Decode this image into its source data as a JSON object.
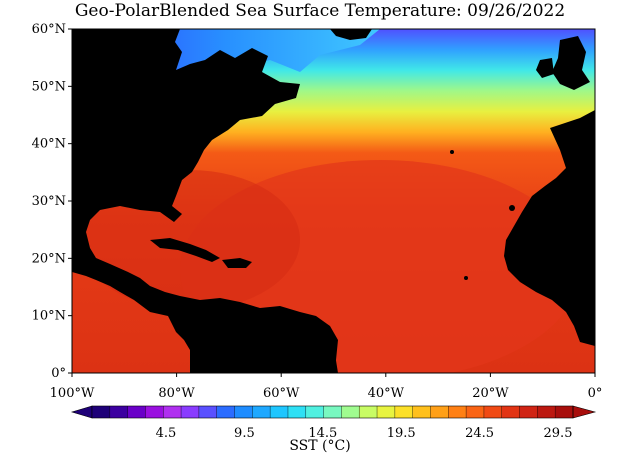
{
  "title": "Geo-PolarBlended Sea Surface Temperature: 09/26/2022",
  "map": {
    "lat_ticks": [
      "60°N",
      "50°N",
      "40°N",
      "30°N",
      "20°N",
      "10°N",
      "0°"
    ],
    "lon_ticks": [
      "100°W",
      "80°W",
      "60°W",
      "40°W",
      "20°W",
      "0°"
    ],
    "land_color": "#000000",
    "ocean_dominant_color": "#e8401c"
  },
  "colorbar": {
    "label": "SST (°C)",
    "ticks": [
      "4.5",
      "9.5",
      "14.5",
      "19.5",
      "24.5",
      "29.5"
    ],
    "colors": [
      "#1e0078",
      "#3c00a0",
      "#6a00c8",
      "#9a10e0",
      "#b030f0",
      "#8a3cff",
      "#5a50ff",
      "#2b6cff",
      "#1e8cff",
      "#1ea8ff",
      "#1ec6ff",
      "#2ee0f5",
      "#50f0e0",
      "#78f8c0",
      "#a0fc90",
      "#c8fc64",
      "#e8f440",
      "#fce028",
      "#ffc01c",
      "#ffa018",
      "#ff8014",
      "#fa6414",
      "#f04a14",
      "#e23414",
      "#d02414",
      "#bc1810",
      "#a80e0c"
    ]
  }
}
